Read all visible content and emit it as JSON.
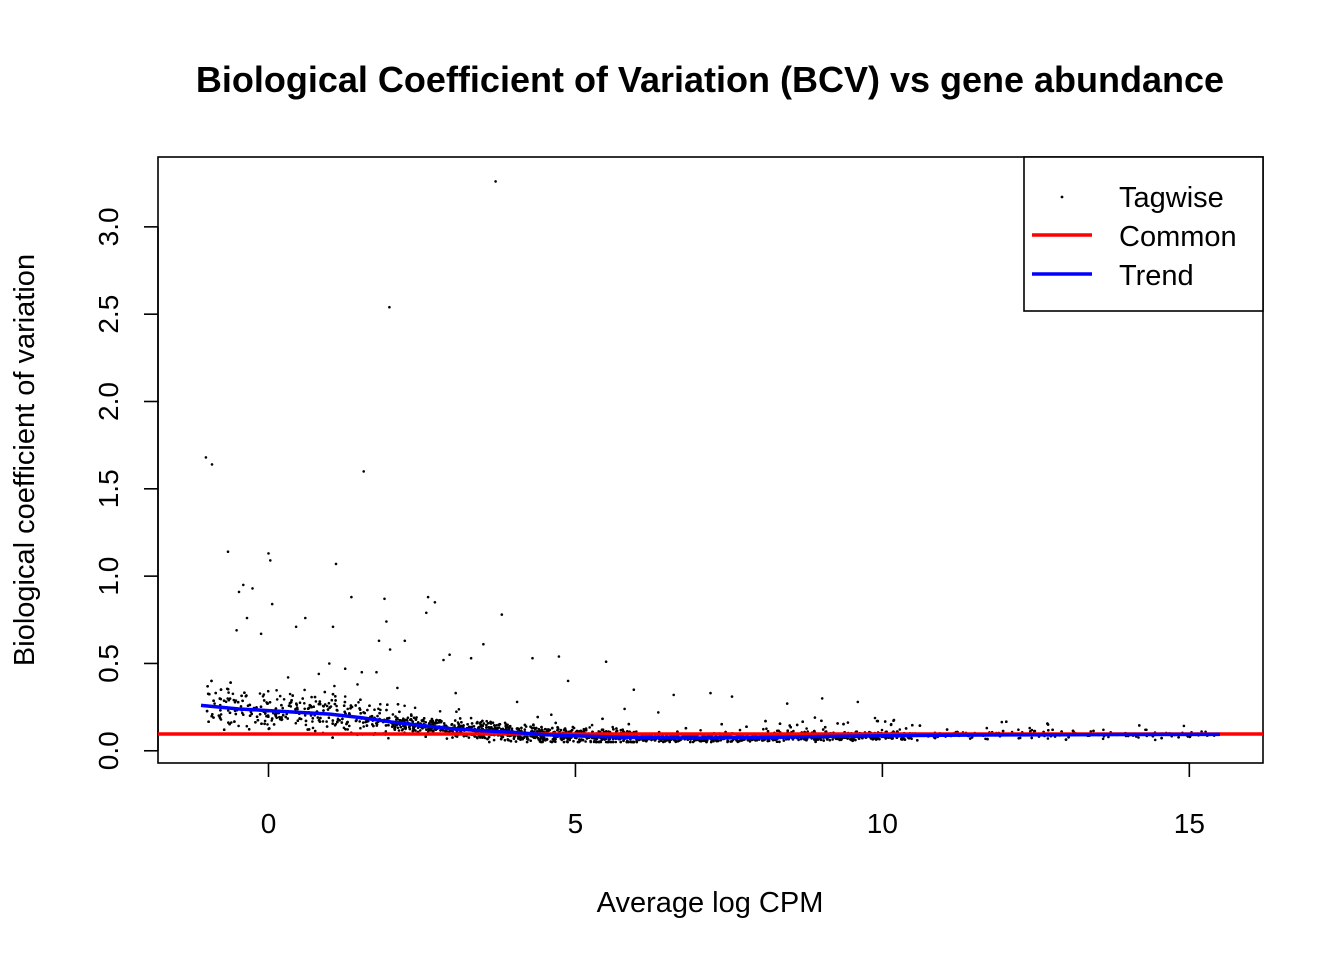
{
  "chart_data": {
    "type": "scatter",
    "title": "Biological Coefficient of Variation (BCV) vs gene abundance",
    "xlabel": "Average log CPM",
    "ylabel": "Biological coefficient of variation",
    "xlim": [
      -1.8,
      16.2
    ],
    "ylim": [
      -0.07,
      3.4
    ],
    "x_ticks": [
      0,
      5,
      10,
      15
    ],
    "x_tick_labels": [
      "0",
      "5",
      "10",
      "15"
    ],
    "y_ticks": [
      0.0,
      0.5,
      1.0,
      1.5,
      2.0,
      2.5,
      3.0
    ],
    "y_tick_labels": [
      "0.0",
      "0.5",
      "1.0",
      "1.5",
      "2.0",
      "2.5",
      "3.0"
    ],
    "grid": false,
    "legend_position": "top-right",
    "legend": [
      {
        "label": "Tagwise",
        "kind": "point",
        "color": "#000000"
      },
      {
        "label": "Common",
        "kind": "line",
        "color": "#ff0000"
      },
      {
        "label": "Trend",
        "kind": "line",
        "color": "#0000ff"
      }
    ],
    "series": [
      {
        "name": "Tagwise",
        "kind": "point",
        "color": "#000000",
        "x": [
          3.7,
          1.97,
          -1.02,
          -0.92,
          1.55,
          -0.66,
          0.0,
          0.03,
          1.1,
          -0.41,
          -0.26,
          -0.48,
          2.6,
          2.71,
          1.35,
          1.89,
          0.06,
          3.8,
          -0.35,
          0.6,
          1.92,
          2.57,
          0.45,
          1.05,
          -0.52,
          -0.12,
          1.8,
          2.22,
          3.5,
          1.98,
          2.95,
          4.3,
          4.73,
          5.5,
          0.99,
          3.3,
          2.85,
          1.25,
          1.52,
          1.76,
          4.88,
          5.95,
          6.6,
          7.2,
          7.55,
          8.45,
          9.02,
          9.6,
          0.32,
          0.82,
          1.45,
          2.1,
          3.05,
          4.05,
          5.8,
          6.35,
          8.9,
          11.7,
          12.4,
          12.7,
          13.6,
          14.3,
          15.2
        ],
        "y": [
          3.26,
          2.54,
          1.68,
          1.64,
          1.6,
          1.14,
          1.13,
          1.09,
          1.07,
          0.95,
          0.93,
          0.91,
          0.88,
          0.85,
          0.88,
          0.87,
          0.84,
          0.78,
          0.76,
          0.76,
          0.74,
          0.79,
          0.71,
          0.71,
          0.69,
          0.67,
          0.63,
          0.63,
          0.61,
          0.58,
          0.55,
          0.53,
          0.54,
          0.51,
          0.5,
          0.53,
          0.52,
          0.47,
          0.45,
          0.45,
          0.4,
          0.35,
          0.32,
          0.33,
          0.31,
          0.27,
          0.3,
          0.28,
          0.42,
          0.44,
          0.38,
          0.36,
          0.33,
          0.28,
          0.24,
          0.22,
          0.19,
          0.13,
          0.13,
          0.15,
          0.12,
          0.12,
          0.11
        ]
      },
      {
        "name": "Common",
        "kind": "line",
        "color": "#ff0000",
        "y": 0.096
      },
      {
        "name": "Trend",
        "kind": "line",
        "color": "#0000ff",
        "x": [
          -1.1,
          -0.5,
          0.0,
          0.5,
          1.0,
          1.5,
          2.0,
          2.5,
          3.0,
          3.5,
          4.0,
          4.5,
          5.0,
          5.5,
          6.0,
          6.5,
          7.0,
          7.5,
          8.0,
          8.5,
          9.0,
          10.0,
          11.0,
          12.0,
          13.0,
          14.0,
          15.5
        ],
        "y": [
          0.26,
          0.24,
          0.23,
          0.22,
          0.21,
          0.19,
          0.165,
          0.145,
          0.125,
          0.115,
          0.105,
          0.092,
          0.085,
          0.08,
          0.076,
          0.074,
          0.073,
          0.074,
          0.076,
          0.079,
          0.082,
          0.086,
          0.089,
          0.091,
          0.092,
          0.093,
          0.094
        ]
      }
    ],
    "dense_band": {
      "note_free": true,
      "x_range": [
        -1.0,
        15.5
      ],
      "point_count": 3200,
      "seed": 17
    }
  }
}
